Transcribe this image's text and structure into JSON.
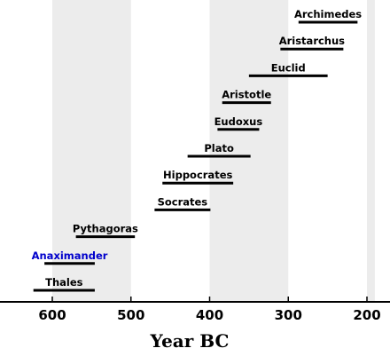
{
  "chart_data": {
    "type": "timeline",
    "title": "",
    "xlabel": "Year   BC",
    "ylabel": "",
    "xlim": [
      660,
      190
    ],
    "x_ticks": [
      600,
      500,
      400,
      300,
      200
    ],
    "tick_labels": [
      "600",
      "500",
      "400",
      "300",
      "200"
    ],
    "grid": false,
    "shaded_bands": [
      [
        600,
        500
      ],
      [
        400,
        300
      ],
      [
        200,
        190
      ]
    ],
    "colors": {
      "band": "#ececec",
      "default_label": "#000000",
      "highlight_label": "#0000cc",
      "line": "#000000"
    },
    "series": [
      {
        "label": "Thales",
        "start": 624,
        "end": 546,
        "highlight": false
      },
      {
        "label": "Anaximander",
        "start": 610,
        "end": 546,
        "highlight": true
      },
      {
        "label": "Pythagoras",
        "start": 570,
        "end": 495,
        "highlight": false
      },
      {
        "label": "Socrates",
        "start": 470,
        "end": 399,
        "highlight": false
      },
      {
        "label": "Hippocrates",
        "start": 460,
        "end": 370,
        "highlight": false
      },
      {
        "label": "Plato",
        "start": 428,
        "end": 348,
        "highlight": false
      },
      {
        "label": "Eudoxus",
        "start": 390,
        "end": 337,
        "highlight": false
      },
      {
        "label": "Aristotle",
        "start": 384,
        "end": 322,
        "highlight": false
      },
      {
        "label": "Euclid",
        "start": 350,
        "end": 250,
        "highlight": false
      },
      {
        "label": "Aristarchus",
        "start": 310,
        "end": 230,
        "highlight": false
      },
      {
        "label": "Archimedes",
        "start": 287,
        "end": 212,
        "highlight": false
      }
    ]
  }
}
